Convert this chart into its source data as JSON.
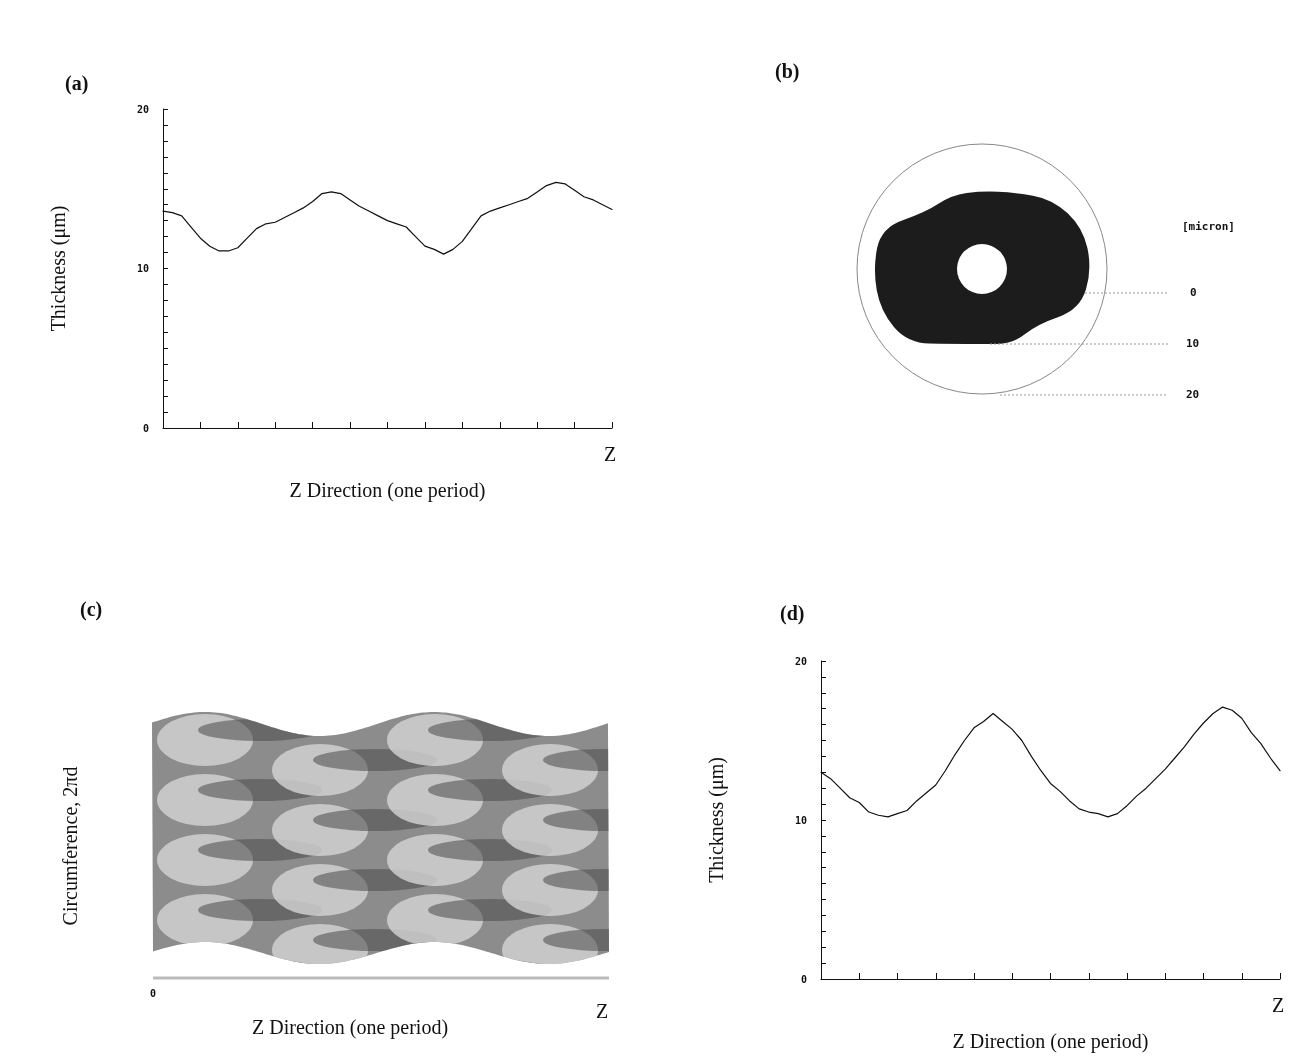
{
  "chart_data": [
    {
      "type": "line",
      "title": "(a)",
      "xlabel": "Z Direction (one period)",
      "ylabel": "Thickness (μm)",
      "color": "#111111",
      "marker": "none",
      "line_style": "solid",
      "annotations": [
        "Z"
      ],
      "categories": [
        null,
        null,
        null,
        null,
        null,
        null,
        null,
        null,
        null,
        null,
        null,
        null,
        null,
        null,
        null,
        null,
        null,
        null,
        null,
        null,
        null,
        null,
        null,
        null,
        null,
        null,
        null,
        null,
        null,
        null,
        null,
        null,
        null,
        null,
        null,
        null,
        null,
        null,
        null,
        null,
        null,
        null,
        null,
        null,
        null,
        null,
        null,
        null,
        null
      ],
      "values": [
        13.6,
        13.5,
        13.3,
        12.6,
        11.9,
        11.4,
        11.1,
        11.1,
        11.3,
        11.9,
        12.5,
        12.8,
        12.9,
        13.2,
        13.5,
        13.8,
        14.2,
        14.7,
        14.8,
        14.7,
        14.3,
        13.9,
        13.6,
        13.3,
        13.0,
        12.8,
        12.6,
        12.0,
        11.4,
        11.2,
        10.9,
        11.2,
        11.7,
        12.5,
        13.3,
        13.6,
        13.8,
        14.0,
        14.2,
        14.4,
        14.8,
        15.2,
        15.4,
        15.3,
        14.9,
        14.5,
        14.3,
        14.0,
        13.7
      ],
      "ylim": [
        0,
        20
      ],
      "yticks": [
        0,
        {
          "value": 1,
          "label": null
        },
        {
          "value": 2,
          "label": null
        },
        {
          "value": 3,
          "label": null
        },
        {
          "value": 4,
          "label": null
        },
        {
          "value": 5,
          "label": null
        },
        {
          "value": 6,
          "label": null
        },
        {
          "value": 7,
          "label": null
        },
        {
          "value": 8,
          "label": null
        },
        {
          "value": 9,
          "label": null
        },
        10,
        {
          "value": 11,
          "label": null
        },
        {
          "value": 12,
          "label": null
        },
        {
          "value": 13,
          "label": null
        },
        {
          "value": 14,
          "label": null
        },
        {
          "value": 15,
          "label": null
        },
        {
          "value": 16,
          "label": null
        },
        {
          "value": 17,
          "label": null
        },
        {
          "value": 18,
          "label": null
        },
        {
          "value": 19,
          "label": null
        },
        20
      ]
    },
    {
      "type": "other",
      "title": "(b)",
      "annotations": [
        "[micron]",
        "0",
        "10",
        "20"
      ]
    },
    {
      "type": "other",
      "title": "(c)",
      "xlabel": "Z Direction (one period)",
      "ylabel": "Circumference, 2πd",
      "annotations": [
        "0",
        "Z"
      ]
    },
    {
      "type": "line",
      "title": "(d)",
      "xlabel": "Z Direction (one period)",
      "ylabel": "Thickness (μm)",
      "color": "#111111",
      "marker": "none",
      "line_style": "solid",
      "annotations": [
        "Z"
      ],
      "categories": [
        null,
        null,
        null,
        null,
        null,
        null,
        null,
        null,
        null,
        null,
        null,
        null,
        null,
        null,
        null,
        null,
        null,
        null,
        null,
        null,
        null,
        null,
        null,
        null,
        null,
        null,
        null,
        null,
        null,
        null,
        null,
        null,
        null,
        null,
        null,
        null,
        null,
        null,
        null,
        null,
        null,
        null,
        null,
        null,
        null,
        null,
        null,
        null,
        null
      ],
      "values": [
        13.0,
        12.6,
        12.0,
        11.4,
        11.1,
        10.5,
        10.3,
        10.2,
        10.4,
        10.6,
        11.2,
        11.7,
        12.2,
        13.1,
        14.1,
        15.0,
        15.8,
        16.2,
        16.7,
        16.2,
        15.7,
        15.0,
        14.0,
        13.1,
        12.3,
        11.8,
        11.2,
        10.7,
        10.5,
        10.4,
        10.2,
        10.4,
        10.9,
        11.5,
        12.0,
        12.6,
        13.2,
        13.9,
        14.6,
        15.4,
        16.1,
        16.7,
        17.1,
        16.9,
        16.4,
        15.5,
        14.8,
        13.9,
        13.1
      ],
      "ylim": [
        0,
        20
      ],
      "yticks": [
        0,
        {
          "value": 1,
          "label": null
        },
        {
          "value": 2,
          "label": null
        },
        {
          "value": 3,
          "label": null
        },
        {
          "value": 4,
          "label": null
        },
        {
          "value": 5,
          "label": null
        },
        {
          "value": 6,
          "label": null
        },
        {
          "value": 7,
          "label": null
        },
        {
          "value": 8,
          "label": null
        },
        {
          "value": 9,
          "label": null
        },
        10,
        {
          "value": 11,
          "label": null
        },
        {
          "value": 12,
          "label": null
        },
        {
          "value": 13,
          "label": null
        },
        {
          "value": 14,
          "label": null
        },
        {
          "value": 15,
          "label": null
        },
        {
          "value": 16,
          "label": null
        },
        {
          "value": 17,
          "label": null
        },
        {
          "value": 18,
          "label": null
        },
        {
          "value": 19,
          "label": null
        },
        20
      ]
    }
  ]
}
